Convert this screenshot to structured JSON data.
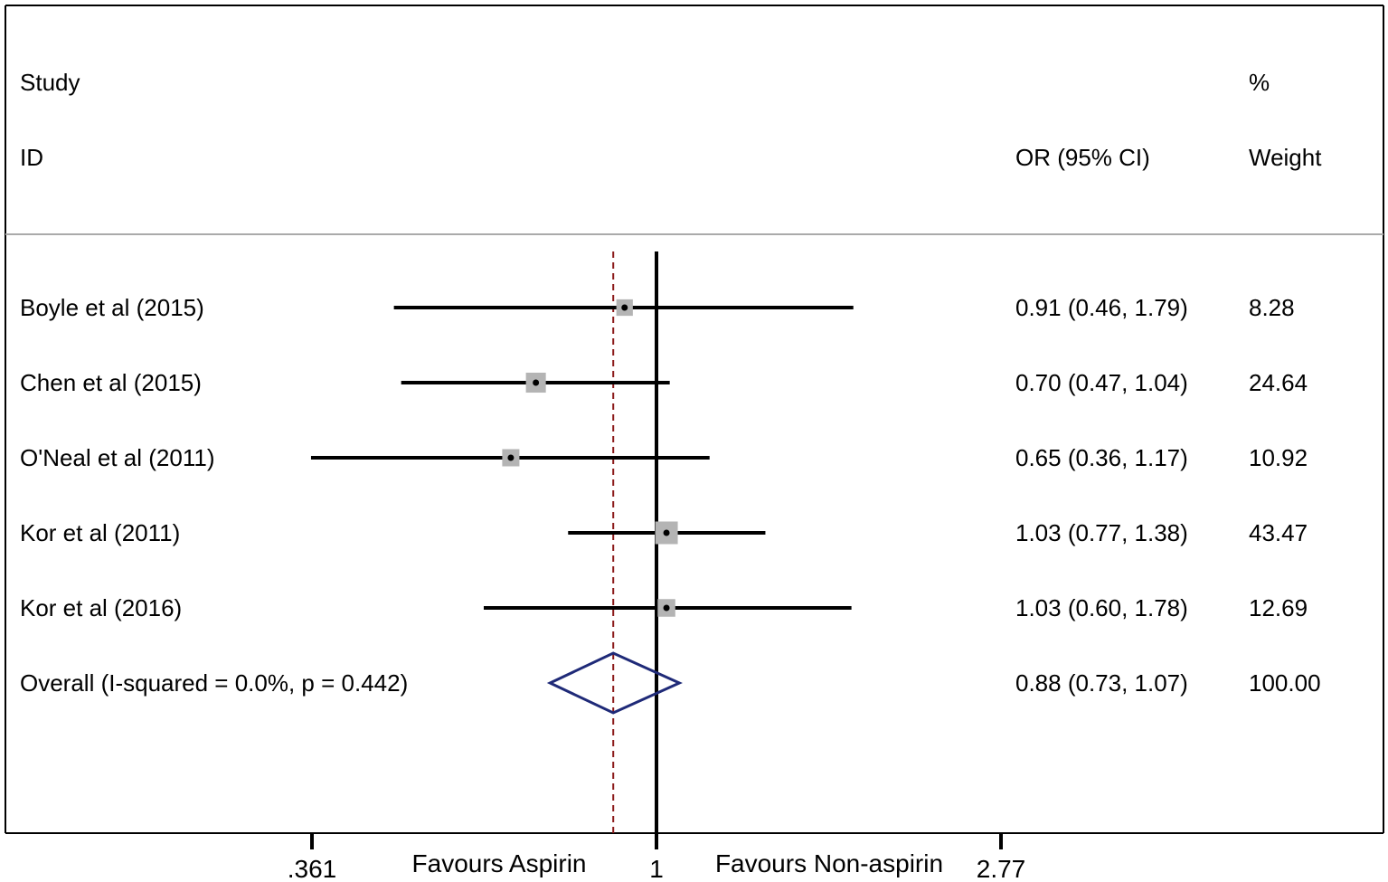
{
  "chart_data": {
    "type": "forest",
    "header": {
      "col1_line1": "Study",
      "col1_line2": "ID",
      "col2_line2": "OR (95% CI)",
      "col3_line1": "%",
      "col3_line2": "Weight"
    },
    "studies": [
      {
        "label": "Boyle et al (2015)",
        "or": 0.91,
        "lower": 0.46,
        "upper": 1.79,
        "ci_text": "0.91 (0.46, 1.79)",
        "weight": 8.28,
        "weight_text": "8.28"
      },
      {
        "label": "Chen et al (2015)",
        "or": 0.7,
        "lower": 0.47,
        "upper": 1.04,
        "ci_text": "0.70 (0.47, 1.04)",
        "weight": 24.64,
        "weight_text": "24.64"
      },
      {
        "label": "O'Neal et al (2011)",
        "or": 0.65,
        "lower": 0.36,
        "upper": 1.17,
        "ci_text": "0.65 (0.36, 1.17)",
        "weight": 10.92,
        "weight_text": "10.92"
      },
      {
        "label": "Kor et al (2011)",
        "or": 1.03,
        "lower": 0.77,
        "upper": 1.38,
        "ci_text": "1.03 (0.77, 1.38)",
        "weight": 43.47,
        "weight_text": "43.47"
      },
      {
        "label": "Kor et al (2016)",
        "or": 1.03,
        "lower": 0.6,
        "upper": 1.78,
        "ci_text": "1.03 (0.60, 1.78)",
        "weight": 12.69,
        "weight_text": "12.69"
      }
    ],
    "overall": {
      "label": "Overall  (I-squared = 0.0%, p = 0.442)",
      "or": 0.88,
      "lower": 0.73,
      "upper": 1.07,
      "ci_text": "0.88 (0.73, 1.07)",
      "weight_text": "100.00"
    },
    "x_scale": "log",
    "xlim": [
      0.361,
      2.77
    ],
    "x_ticks": [
      {
        "value": 0.361,
        "label": ".361"
      },
      {
        "value": 1,
        "label": "1"
      },
      {
        "value": 2.77,
        "label": "2.77"
      }
    ],
    "x_annotations": {
      "left": "Favours Aspirin",
      "right": "Favours Non-aspirin"
    },
    "reference_line": 1,
    "colors": {
      "ci_line": "#000000",
      "weight_box": "#b4b4b4",
      "overall_diamond": "#1f2a78",
      "overall_dashed_line": "#8b1a1a"
    }
  }
}
